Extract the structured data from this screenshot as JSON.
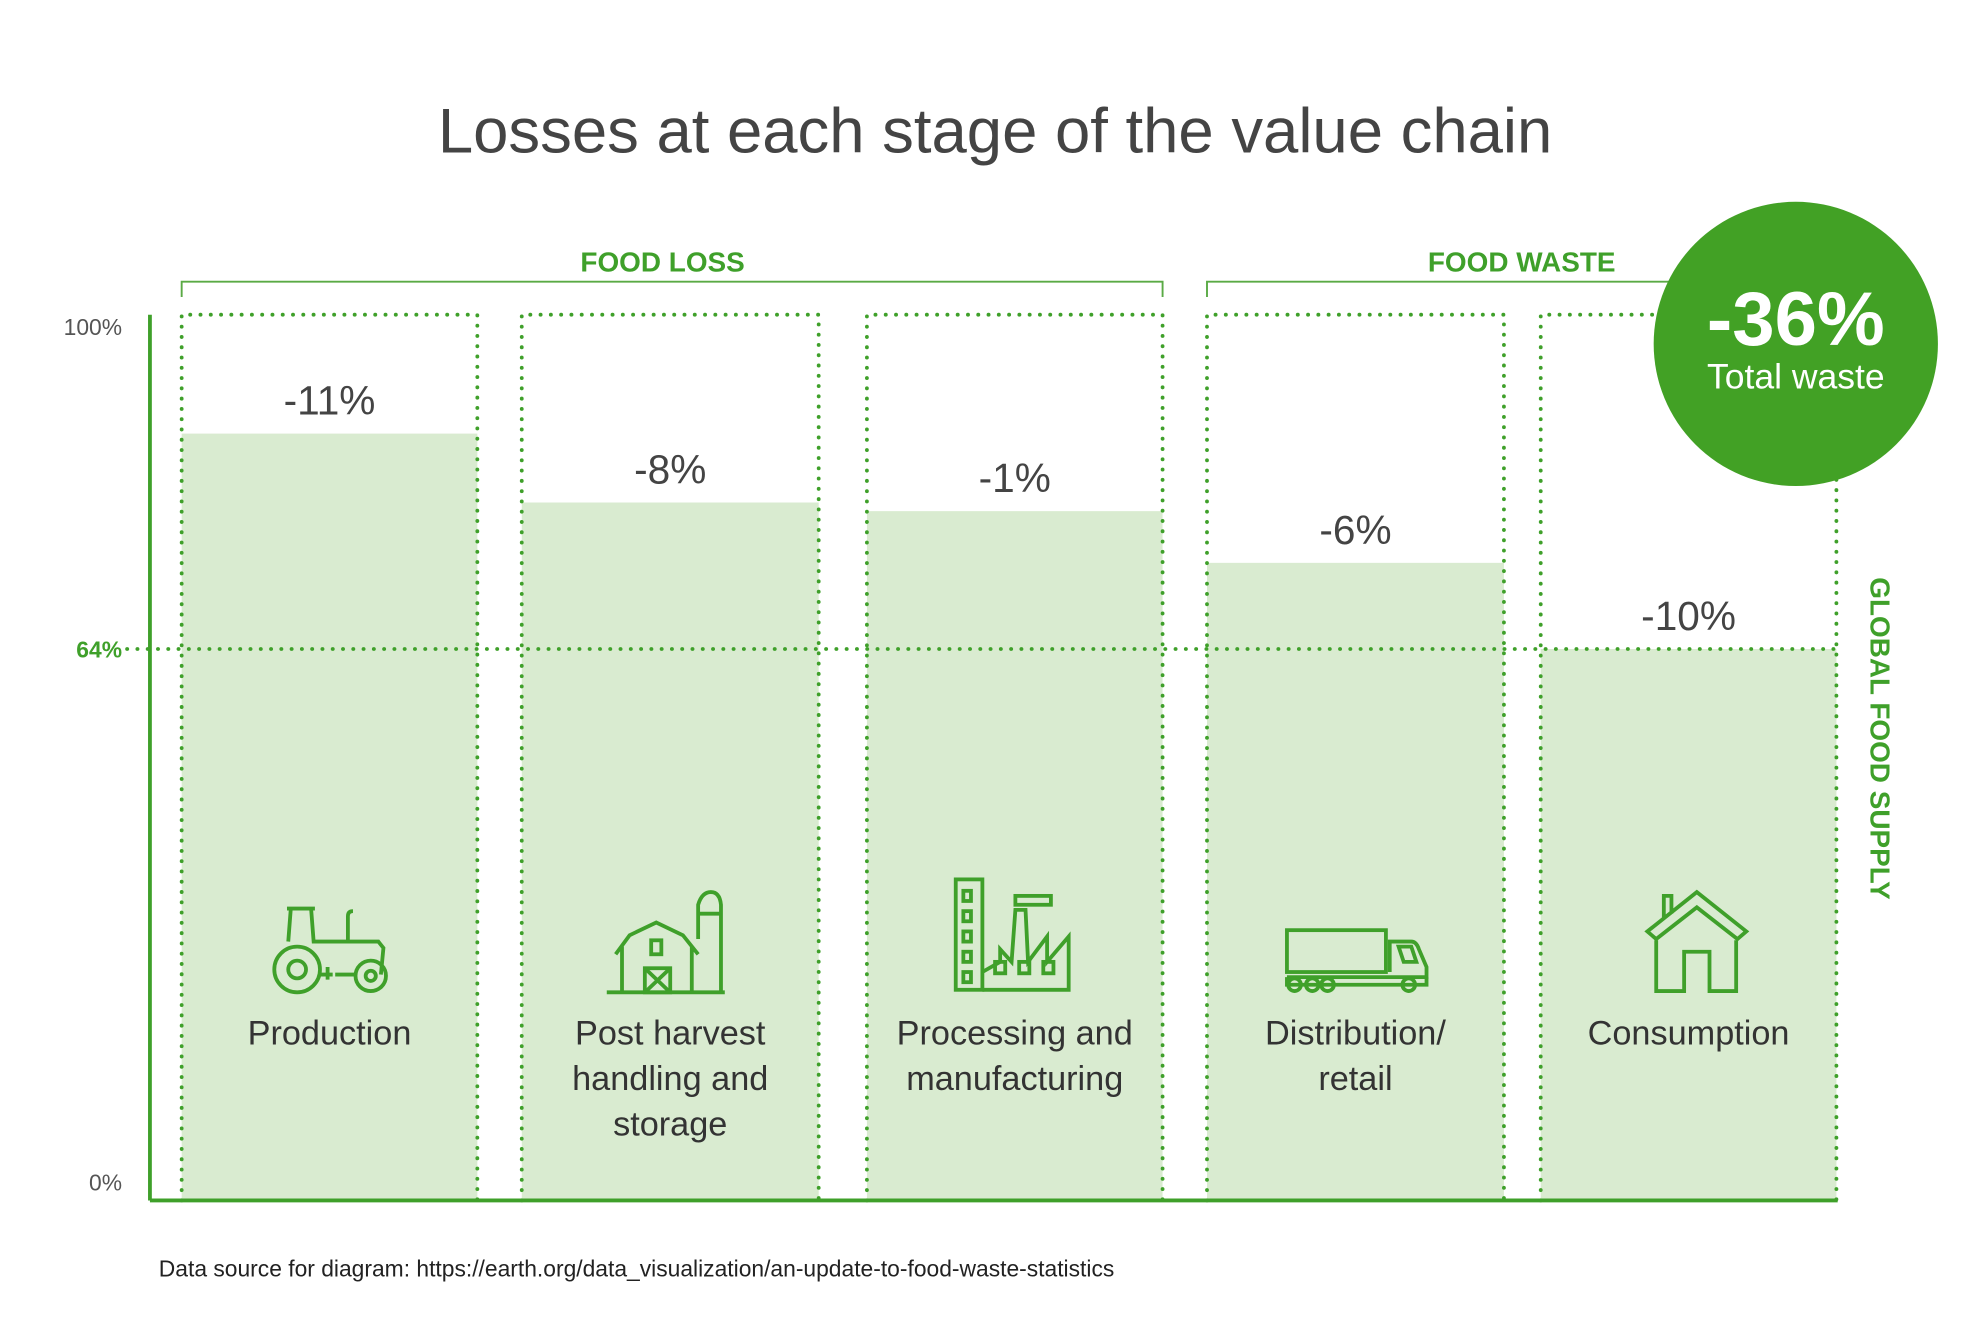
{
  "title": "Losses at each stage of the value chain",
  "groups": {
    "food_loss": "FOOD LOSS",
    "food_waste": "FOOD WASTE"
  },
  "axis": {
    "tick_100": "100%",
    "tick_64": "64%",
    "tick_0": "0%",
    "right_label": "GLOBAL FOOD SUPPLY"
  },
  "total": {
    "value": "-36%",
    "label": "Total waste"
  },
  "source": "Data source for diagram: https://earth.org/data_visualization/an-update-to-food-waste-statistics",
  "colors": {
    "accent": "#3fa02a",
    "bar_fill": "#d9ebd0",
    "badge": "#42a125",
    "text": "#444444"
  },
  "chart_data": {
    "type": "bar",
    "categories": [
      "Production",
      "Post harvest handling and storage",
      "Processing and manufacturing",
      "Distribution/ retail",
      "Consumption"
    ],
    "category_lines": [
      [
        "Production"
      ],
      [
        "Post harvest",
        "handling and",
        "storage"
      ],
      [
        "Processing and",
        "manufacturing"
      ],
      [
        "Distribution/",
        "retail"
      ],
      [
        "Consumption"
      ]
    ],
    "icons": [
      "tractor-icon",
      "barn-silo-icon",
      "factory-icon",
      "truck-icon",
      "house-icon"
    ],
    "values": [
      89,
      81,
      80,
      74,
      64
    ],
    "data_labels": [
      "-11%",
      "-8%",
      "-1%",
      "-6%",
      "-10%"
    ],
    "ylim": [
      0,
      100
    ],
    "reference_line": 64,
    "grid": false
  }
}
